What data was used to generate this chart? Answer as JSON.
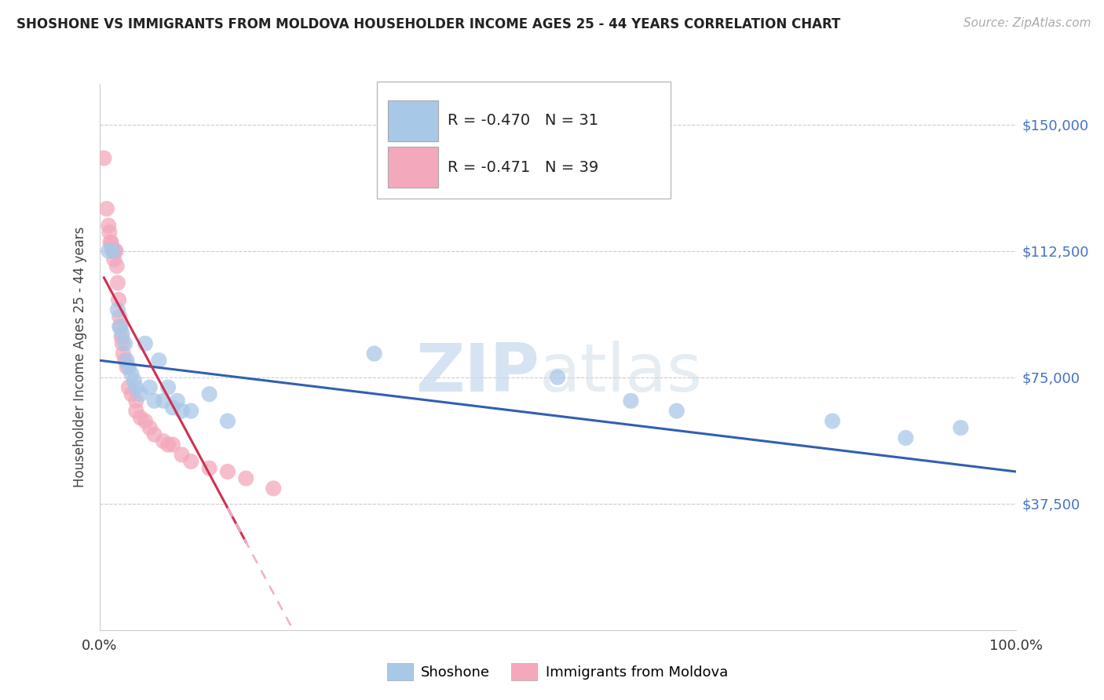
{
  "title": "SHOSHONE VS IMMIGRANTS FROM MOLDOVA HOUSEHOLDER INCOME AGES 25 - 44 YEARS CORRELATION CHART",
  "source": "Source: ZipAtlas.com",
  "ylabel": "Householder Income Ages 25 - 44 years",
  "yticks": [
    37500,
    75000,
    112500,
    150000
  ],
  "ytick_labels": [
    "$37,500",
    "$75,000",
    "$112,500",
    "$150,000"
  ],
  "xlim": [
    0,
    100
  ],
  "ylim": [
    0,
    162000
  ],
  "shoshone_color": "#a8c8e8",
  "moldova_color": "#f4a8bc",
  "shoshone_line_color": "#3060b0",
  "moldova_solid_color": "#d03050",
  "moldova_dashed_color": "#f0b0c8",
  "ytick_color": "#4472c4",
  "R_shoshone": "-0.470",
  "N_shoshone": 31,
  "R_moldova": "-0.471",
  "N_moldova": 39,
  "legend_label_1": "Shoshone",
  "legend_label_2": "Immigrants from Moldova",
  "shoshone_x": [
    1.0,
    1.5,
    2.0,
    2.2,
    2.5,
    2.8,
    3.0,
    3.2,
    3.5,
    3.8,
    4.0,
    4.5,
    5.0,
    5.5,
    6.0,
    6.5,
    7.0,
    7.5,
    8.0,
    8.5,
    9.0,
    10.0,
    12.0,
    14.0,
    30.0,
    50.0,
    58.0,
    63.0,
    80.0,
    88.0,
    94.0
  ],
  "shoshone_y": [
    112500,
    112500,
    95000,
    90000,
    88000,
    85000,
    80000,
    78000,
    76000,
    74000,
    72000,
    70000,
    85000,
    72000,
    68000,
    80000,
    68000,
    72000,
    66000,
    68000,
    65000,
    65000,
    70000,
    62000,
    82000,
    75000,
    68000,
    65000,
    62000,
    57000,
    60000
  ],
  "moldova_x": [
    0.5,
    0.8,
    1.0,
    1.1,
    1.2,
    1.3,
    1.4,
    1.5,
    1.5,
    1.6,
    1.7,
    1.8,
    1.9,
    2.0,
    2.1,
    2.2,
    2.3,
    2.4,
    2.5,
    2.6,
    2.8,
    3.0,
    3.2,
    3.5,
    4.0,
    4.0,
    4.5,
    5.0,
    5.5,
    6.0,
    7.0,
    7.5,
    8.0,
    9.0,
    10.0,
    12.0,
    14.0,
    16.0,
    19.0
  ],
  "moldova_y": [
    140000,
    125000,
    120000,
    118000,
    115000,
    115000,
    113000,
    112500,
    112500,
    110000,
    112500,
    112500,
    108000,
    103000,
    98000,
    93000,
    90000,
    87000,
    85000,
    82000,
    80000,
    78000,
    72000,
    70000,
    68000,
    65000,
    63000,
    62000,
    60000,
    58000,
    56000,
    55000,
    55000,
    52000,
    50000,
    48000,
    47000,
    45000,
    42000
  ],
  "shoshone_line_x0": 0,
  "shoshone_line_y0": 80000,
  "shoshone_line_x1": 100,
  "shoshone_line_y1": 47000,
  "moldova_solid_x0": 0.5,
  "moldova_solid_x1": 16.0,
  "moldova_dashed_x0": 14.0,
  "moldova_dashed_x1": 30.0
}
